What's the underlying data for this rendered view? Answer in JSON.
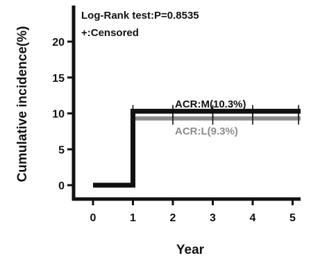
{
  "chart_data": {
    "type": "line",
    "subtype": "cumulative-incidence-step",
    "xlabel": "Year",
    "ylabel": "Cumulative incidence(%)",
    "xlim": [
      -0.5,
      5.2
    ],
    "ylim": [
      -1.5,
      25
    ],
    "xticks": [
      0,
      1,
      2,
      3,
      4,
      5
    ],
    "yticks": [
      0,
      5,
      10,
      15,
      20
    ],
    "grid": false,
    "annotations": [
      "Log-Rank test:P=0.8535",
      "+:Censored"
    ],
    "series": [
      {
        "name": "ACR:M(10.3%)",
        "color": "#111111",
        "steps": [
          [
            0,
            0
          ],
          [
            1,
            0
          ],
          [
            1,
            10.3
          ],
          [
            5.2,
            10.3
          ]
        ],
        "censor_x": [
          1,
          2,
          3,
          4,
          5.15
        ]
      },
      {
        "name": "ACR:L(9.3%)",
        "color": "#8c8c8c",
        "steps": [
          [
            0,
            0
          ],
          [
            1,
            0
          ],
          [
            1,
            9.3
          ],
          [
            5.2,
            9.3
          ]
        ],
        "censor_x": [
          1,
          2,
          3,
          4,
          5.15
        ]
      }
    ]
  }
}
